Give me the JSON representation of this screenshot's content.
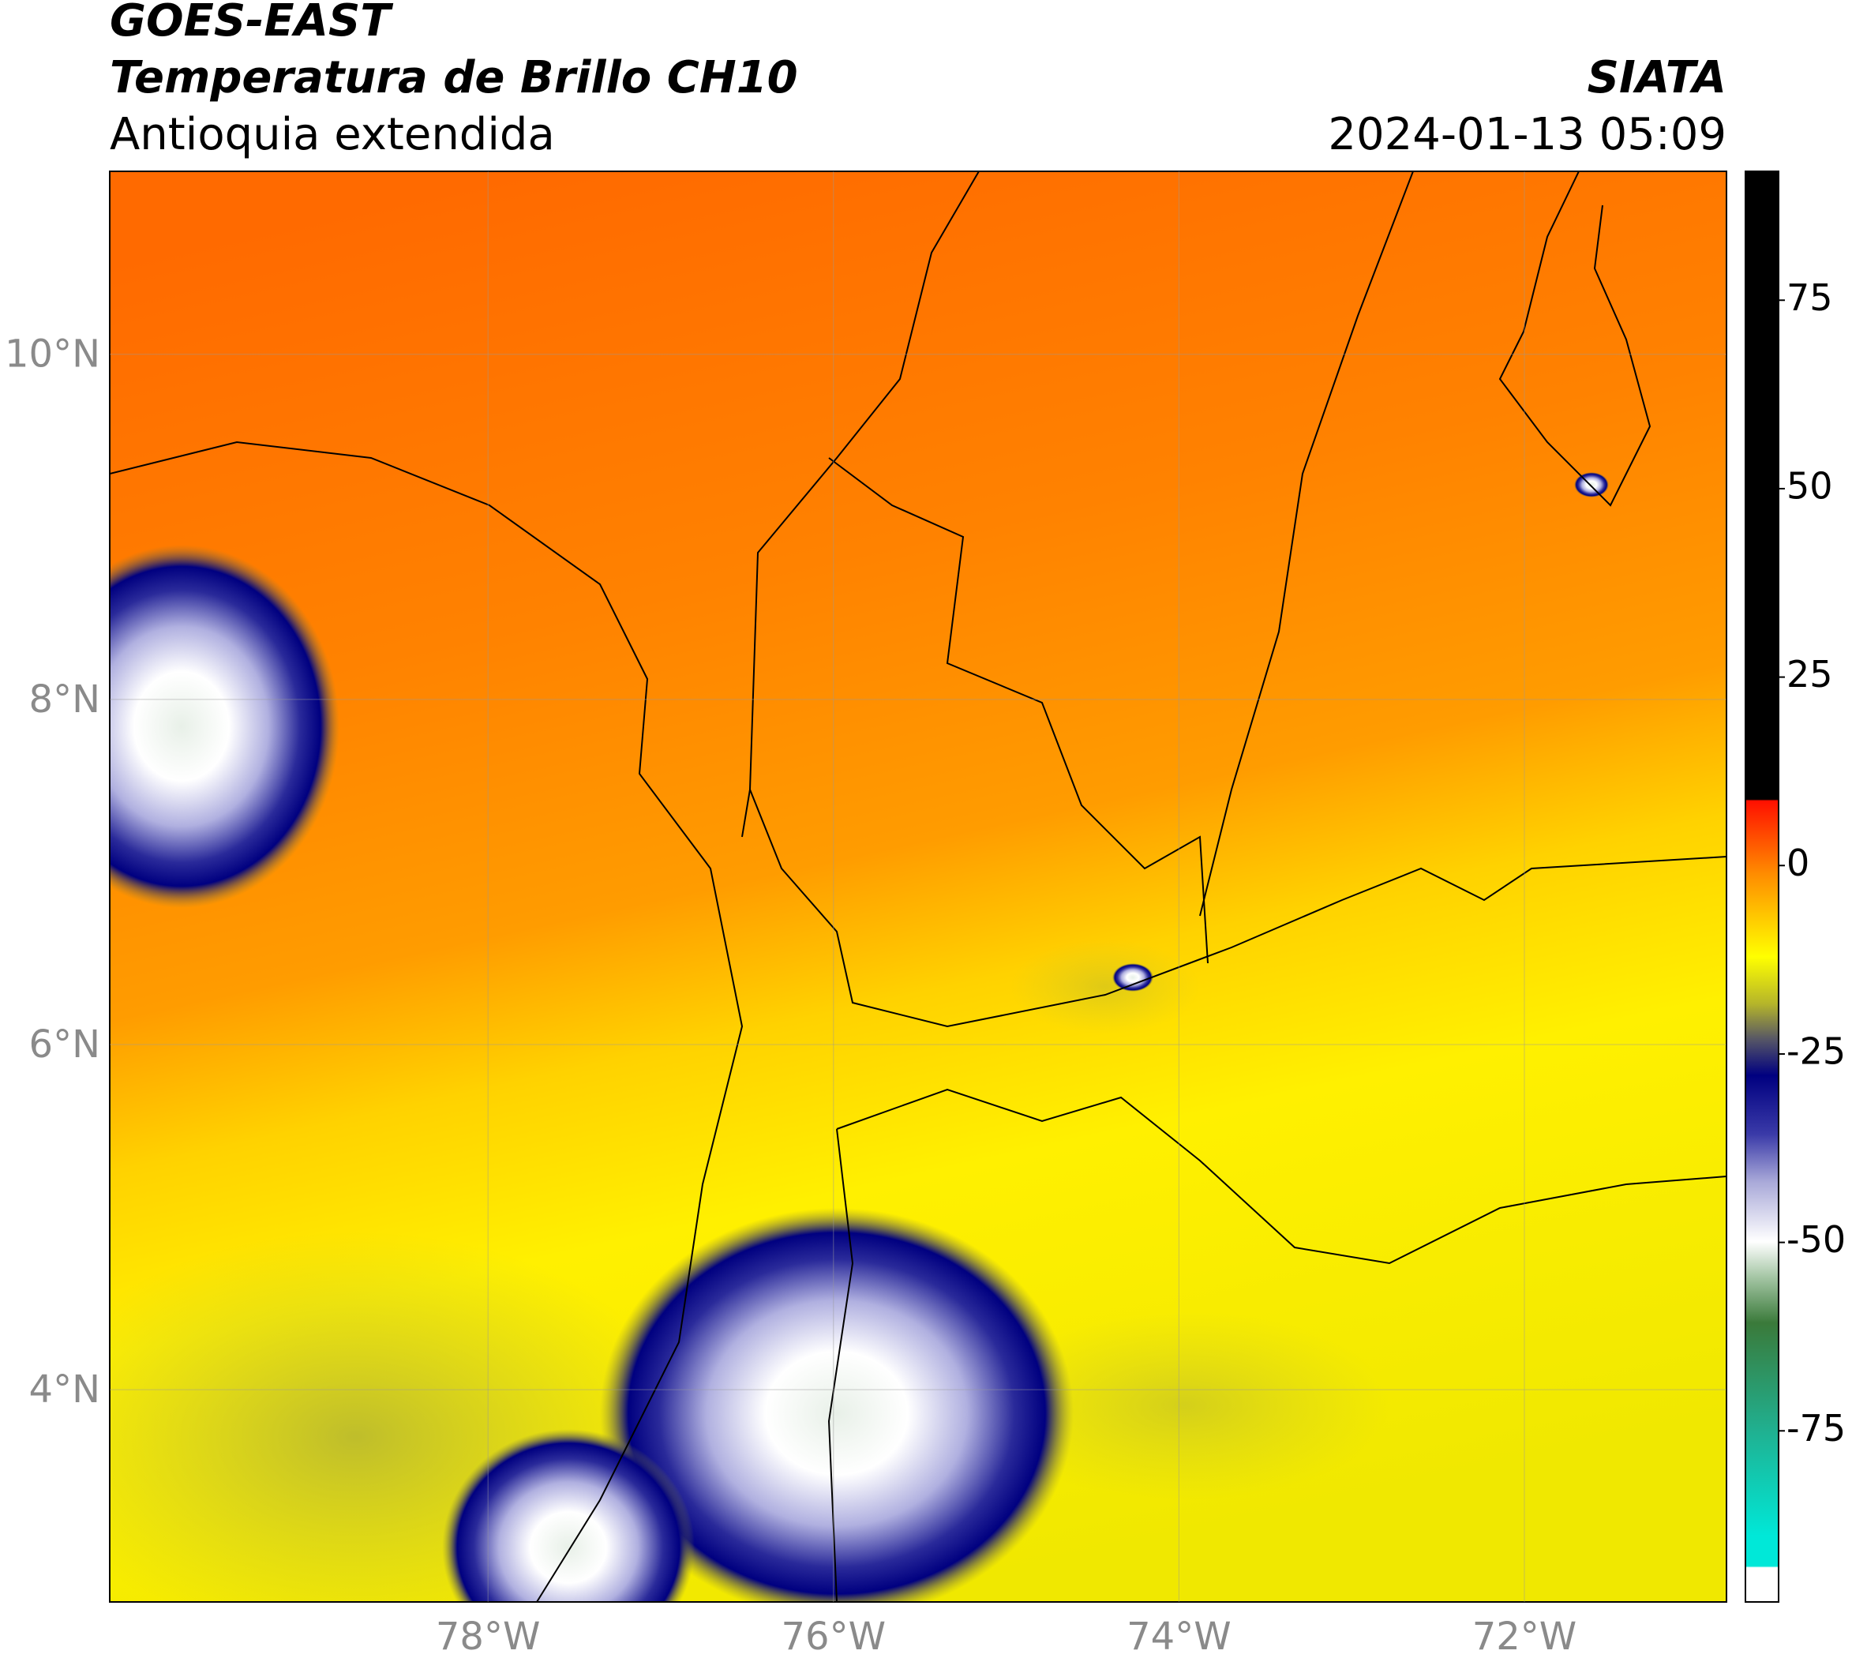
{
  "header": {
    "title": "GOES-EAST",
    "subtitle": "Temperatura de Brillo CH10",
    "region": "Antioquia extendida",
    "source": "SIATA",
    "datetime": "2024-01-13 05:09"
  },
  "chart_data": {
    "type": "map",
    "xlim": [
      -80.19,
      -70.83
    ],
    "ylim": [
      2.77,
      11.06
    ],
    "xticks": [
      {
        "value": -78,
        "label": "78°W"
      },
      {
        "value": -76,
        "label": "76°W"
      },
      {
        "value": -74,
        "label": "74°W"
      },
      {
        "value": -72,
        "label": "72°W"
      }
    ],
    "yticks": [
      {
        "value": 10,
        "label": "10°N"
      },
      {
        "value": 8,
        "label": "8°N"
      },
      {
        "value": 6,
        "label": "6°N"
      },
      {
        "value": 4,
        "label": "4°N"
      }
    ],
    "grid": true,
    "colorbar": {
      "clim": [
        -97.7,
        92.1
      ],
      "ticks": [
        75,
        50,
        25,
        0,
        -25,
        -50,
        -75
      ]
    }
  }
}
